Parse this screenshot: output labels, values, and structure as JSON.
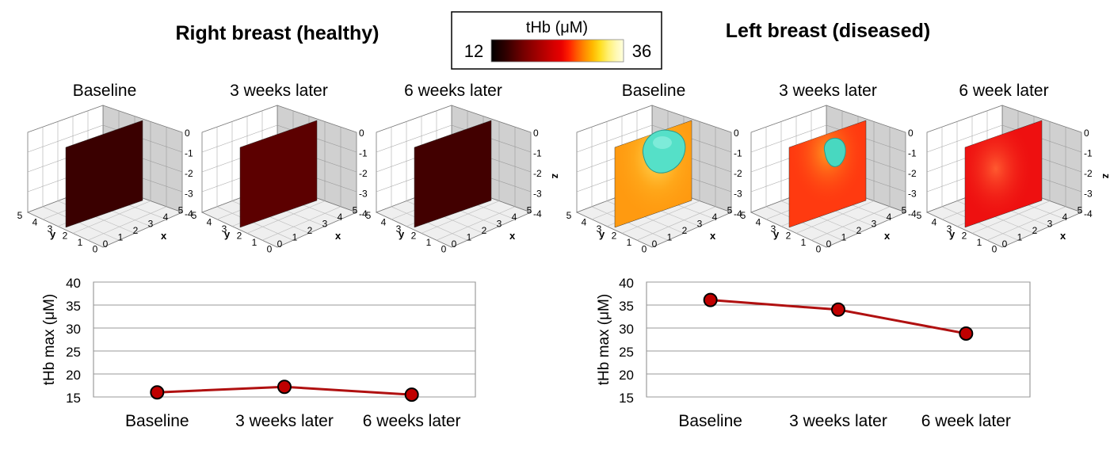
{
  "titles": {
    "right": "Right breast (healthy)",
    "left": "Left breast (diseased)"
  },
  "colorbar": {
    "label": "tHb (μM)",
    "min_label": "12",
    "max_label": "36",
    "colors": [
      "#000000",
      "#1a0000",
      "#330000",
      "#520000",
      "#700000",
      "#8a0000",
      "#a30000",
      "#bb0000",
      "#d40000",
      "#e80000",
      "#ff2000",
      "#ff5a00",
      "#ff8c00",
      "#ffb800",
      "#ffde20",
      "#fff070",
      "#fff8b0",
      "#ffffe0"
    ]
  },
  "axes3d": {
    "z_ticks": [
      "0",
      "-1",
      "-2",
      "-3",
      "-4"
    ],
    "y_ticks": [
      "5",
      "4",
      "3",
      "2",
      "1",
      "0"
    ],
    "x_ticks": [
      "0",
      "1",
      "2",
      "3",
      "4",
      "5"
    ],
    "x_label": "x",
    "y_label": "y",
    "z_label": "z"
  },
  "panels_right": [
    {
      "title": "Baseline",
      "plane_color": "#3a0000",
      "tumor": false
    },
    {
      "title": "3 weeks later",
      "plane_color": "#5c0000",
      "tumor": false
    },
    {
      "title": "6 weeks later",
      "plane_color": "#420000",
      "tumor": false
    }
  ],
  "panels_left": [
    {
      "title": "Baseline",
      "plane_color": "#ff9a10",
      "tumor": true,
      "tumor_size": "large"
    },
    {
      "title": "3 weeks later",
      "plane_color": "#ff3a10",
      "tumor": true,
      "tumor_size": "small"
    },
    {
      "title": "6 week later",
      "plane_color": "#ee1010",
      "tumor": false
    }
  ],
  "chart_data": [
    {
      "type": "line",
      "title": "",
      "categories": [
        "Baseline",
        "3 weeks later",
        "6 weeks later"
      ],
      "series": [
        {
          "name": "Right breast (healthy)",
          "values": [
            16.0,
            17.2,
            15.5
          ],
          "color": "#b01010"
        }
      ],
      "xlabel": "",
      "ylabel": "tHb max (μM)",
      "ylim": [
        15,
        40
      ],
      "yticks": [
        15,
        20,
        25,
        30,
        35,
        40
      ],
      "grid": true
    },
    {
      "type": "line",
      "title": "",
      "categories": [
        "Baseline",
        "3 weeks later",
        "6 week later"
      ],
      "series": [
        {
          "name": "Left breast (diseased)",
          "values": [
            36.1,
            34.0,
            28.8
          ],
          "color": "#b01010"
        }
      ],
      "xlabel": "",
      "ylabel": "tHb max (μM)",
      "ylim": [
        15,
        40
      ],
      "yticks": [
        15,
        20,
        25,
        30,
        35,
        40
      ],
      "grid": true
    }
  ]
}
